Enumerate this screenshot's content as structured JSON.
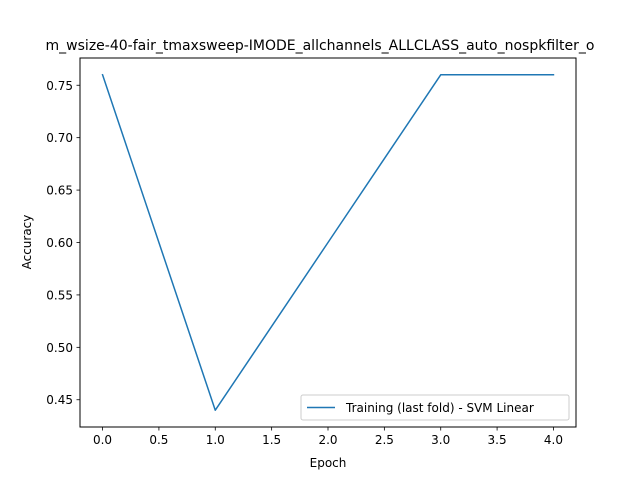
{
  "chart_data": {
    "type": "line",
    "title": "m_wsize-40-fair_tmaxsweep-IMODE_allchannels_ALLCLASS_auto_nospkfilter_o",
    "xlabel": "Epoch",
    "ylabel": "Accuracy",
    "xlim": [
      -0.2,
      4.2
    ],
    "ylim": [
      0.424,
      0.776
    ],
    "xticks": [
      0.0,
      0.5,
      1.0,
      1.5,
      2.0,
      2.5,
      3.0,
      3.5,
      4.0
    ],
    "xtick_labels": [
      "0.0",
      "0.5",
      "1.0",
      "1.5",
      "2.0",
      "2.5",
      "3.0",
      "3.5",
      "4.0"
    ],
    "yticks": [
      0.45,
      0.5,
      0.55,
      0.6,
      0.65,
      0.7,
      0.75
    ],
    "ytick_labels": [
      "0.45",
      "0.50",
      "0.55",
      "0.60",
      "0.65",
      "0.70",
      "0.75"
    ],
    "grid": false,
    "legend_position": "lower-right",
    "series": [
      {
        "name": "Training (last fold) - SVM Linear",
        "color": "#1f77b4",
        "x": [
          0,
          1,
          2,
          3,
          4
        ],
        "y": [
          0.76,
          0.44,
          0.6,
          0.76,
          0.76
        ]
      }
    ]
  }
}
